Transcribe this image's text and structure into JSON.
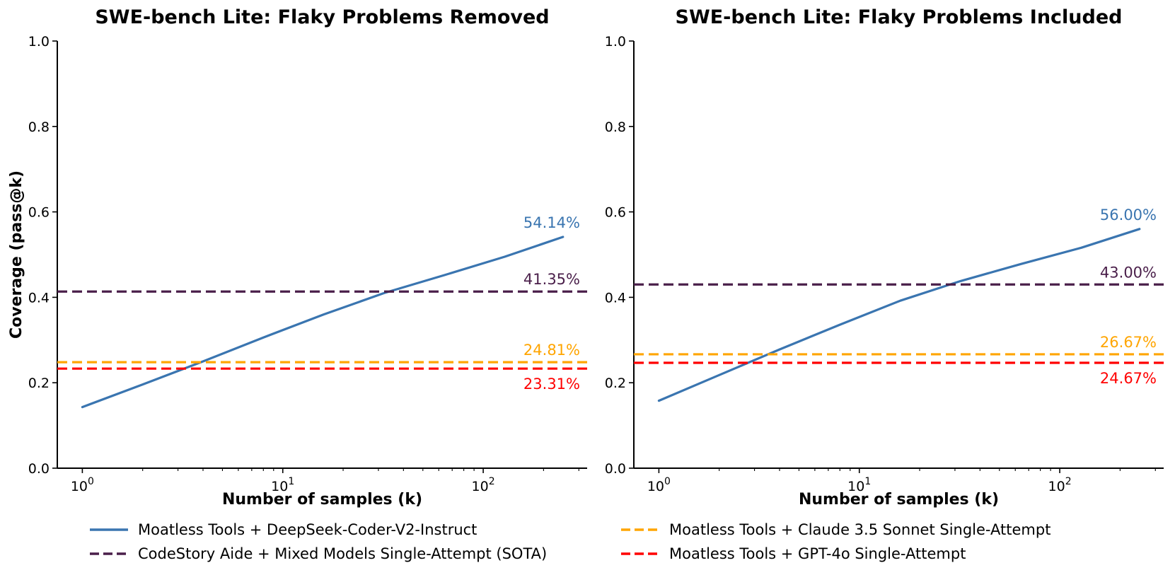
{
  "chart_data": [
    {
      "type": "line",
      "title": "SWE-bench Lite: Flaky Problems Removed",
      "xlabel": "Number of samples (k)",
      "ylabel": "Coverage (pass@k)",
      "xscale": "log",
      "xlim": [
        0.75,
        330
      ],
      "ylim": [
        0.0,
        1.0
      ],
      "yticks": [
        "0.0",
        "0.2",
        "0.4",
        "0.6",
        "0.8",
        "1.0"
      ],
      "xticks": [
        {
          "base": "10",
          "exp": "0"
        },
        {
          "base": "10",
          "exp": "1"
        },
        {
          "base": "10",
          "exp": "2"
        }
      ],
      "series": [
        {
          "name": "Moatless Tools + DeepSeek-Coder-V2-Instruct",
          "x": [
            1,
            2,
            4,
            8,
            16,
            32,
            64,
            128,
            250
          ],
          "y": [
            0.143,
            0.196,
            0.25,
            0.306,
            0.36,
            0.41,
            0.452,
            0.495,
            0.5414
          ],
          "label": "54.14%"
        },
        {
          "name": "CodeStory Aide + Mixed Models Single-Attempt (SOTA)",
          "hline": 0.4135,
          "label": "41.35%"
        },
        {
          "name": "Moatless Tools + Claude 3.5 Sonnet Single-Attempt",
          "hline": 0.2481,
          "label": "24.81%"
        },
        {
          "name": "Moatless Tools + GPT-4o Single-Attempt",
          "hline": 0.2331,
          "label": "23.31%"
        }
      ]
    },
    {
      "type": "line",
      "title": "SWE-bench Lite: Flaky Problems Included",
      "xlabel": "Number of samples (k)",
      "ylabel": "",
      "xscale": "log",
      "xlim": [
        0.75,
        330
      ],
      "ylim": [
        0.0,
        1.0
      ],
      "yticks": [
        "0.0",
        "0.2",
        "0.4",
        "0.6",
        "0.8",
        "1.0"
      ],
      "xticks": [
        {
          "base": "10",
          "exp": "0"
        },
        {
          "base": "10",
          "exp": "1"
        },
        {
          "base": "10",
          "exp": "2"
        }
      ],
      "series": [
        {
          "name": "Moatless Tools + DeepSeek-Coder-V2-Instruct",
          "x": [
            1,
            2,
            4,
            8,
            16,
            32,
            64,
            128,
            250
          ],
          "y": [
            0.158,
            0.218,
            0.278,
            0.336,
            0.392,
            0.438,
            0.478,
            0.516,
            0.56
          ],
          "label": "56.00%"
        },
        {
          "name": "CodeStory Aide + Mixed Models Single-Attempt (SOTA)",
          "hline": 0.43,
          "label": "43.00%"
        },
        {
          "name": "Moatless Tools + Claude 3.5 Sonnet Single-Attempt",
          "hline": 0.2667,
          "label": "26.67%"
        },
        {
          "name": "Moatless Tools + GPT-4o Single-Attempt",
          "hline": 0.2467,
          "label": "24.67%"
        }
      ]
    }
  ],
  "legend": [
    {
      "label": "Moatless Tools + DeepSeek-Coder-V2-Instruct",
      "color": "#3a75b0",
      "dashed": false
    },
    {
      "label": "CodeStory Aide + Mixed Models Single-Attempt (SOTA)",
      "color": "#4a1f4a",
      "dashed": true
    },
    {
      "label": "Moatless Tools + Claude 3.5 Sonnet Single-Attempt",
      "color": "#ffa500",
      "dashed": true
    },
    {
      "label": "Moatless Tools + GPT-4o Single-Attempt",
      "color": "#ff0000",
      "dashed": true
    }
  ],
  "colors": [
    "#3a75b0",
    "#4a1f4a",
    "#ffa500",
    "#ff0000"
  ]
}
